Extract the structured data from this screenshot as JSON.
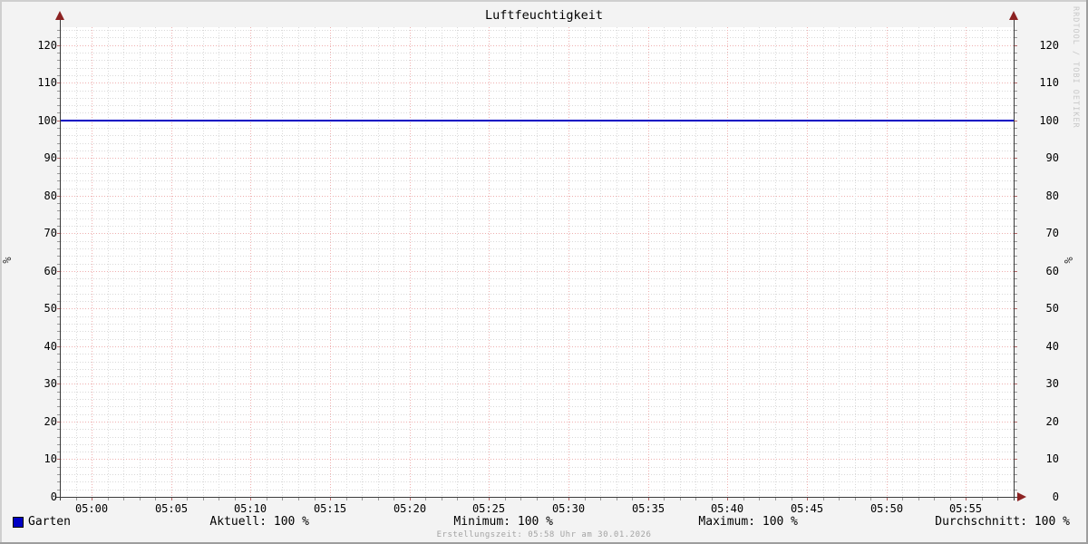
{
  "chart_data": {
    "type": "line",
    "title": "Luftfeuchtigkeit",
    "watermark": "RRDTOOL / TOBI OETIKER",
    "footer": "Erstellungszeit: 05:58 Uhr am 30.01.2026",
    "y_axis": {
      "unit": "%",
      "min": 0,
      "max": 125,
      "major_step": 10,
      "minor_step": 2,
      "tick_labels": [
        0,
        10,
        20,
        30,
        40,
        50,
        60,
        70,
        80,
        90,
        100,
        110,
        120
      ]
    },
    "x_axis": {
      "start_time": "04:58",
      "end_time": "05:58",
      "start_min": 298,
      "end_min": 358,
      "minor_step_min": 1,
      "major_step_min": 5,
      "ticks": [
        {
          "label": "05:00",
          "min": 300
        },
        {
          "label": "05:05",
          "min": 305
        },
        {
          "label": "05:10",
          "min": 310
        },
        {
          "label": "05:15",
          "min": 315
        },
        {
          "label": "05:20",
          "min": 320
        },
        {
          "label": "05:25",
          "min": 325
        },
        {
          "label": "05:30",
          "min": 330
        },
        {
          "label": "05:35",
          "min": 335
        },
        {
          "label": "05:40",
          "min": 340
        },
        {
          "label": "05:45",
          "min": 345
        },
        {
          "label": "05:50",
          "min": 350
        },
        {
          "label": "05:55",
          "min": 355
        }
      ]
    },
    "series": [
      {
        "name": "Garten",
        "color": "#0000c4",
        "value": 100,
        "points": [
          [
            298,
            100
          ],
          [
            358,
            100
          ]
        ]
      }
    ],
    "stats": [
      "Aktuell: 100 %",
      "Minimum: 100 %",
      "Maximum: 100 %",
      "Durchschnitt: 100 %"
    ],
    "legend_position": "bottom",
    "grid": true,
    "colors": {
      "background": "#f3f3f3",
      "plot_background": "#ffffff",
      "major_grid": "#efb0b0",
      "minor_grid": "#d9d9d9",
      "minor_tick": "#999999",
      "major_tick": "#b36666",
      "axis": "#3c3c3c",
      "arrow": "#8c2222",
      "line": "#0000c4",
      "watermark_text": "#c8c8c8",
      "footer_text": "#a3a3a3"
    }
  }
}
